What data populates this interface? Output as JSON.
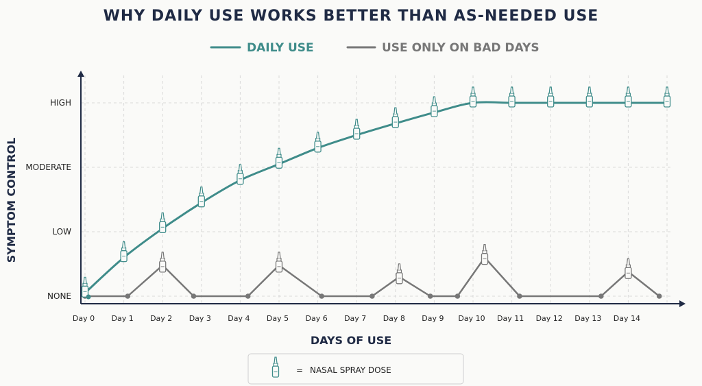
{
  "chart_data": {
    "type": "line",
    "title": "WHY DAILY USE WORKS BETTER THAN AS-NEEDED USE",
    "xlabel": "DAYS OF USE",
    "ylabel": "SYMPTOM CONTROL",
    "y_levels": [
      "NONE",
      "LOW",
      "MODERATE",
      "HIGH"
    ],
    "ylim": [
      0,
      3
    ],
    "categories": [
      "Day 0",
      "Day 1",
      "Day 2",
      "Day 3",
      "Day 4",
      "Day 5",
      "Day 6",
      "Day 7",
      "Day 8",
      "Day 9",
      "Day 10",
      "Day 11",
      "Day 12",
      "Day 13",
      "Day 14"
    ],
    "grid": true,
    "legend_position": "top-center",
    "series": [
      {
        "name": "DAILY USE",
        "color": "#3f8c8a",
        "points": [
          {
            "x": 0,
            "y": 0.05,
            "dose": true
          },
          {
            "x": 1,
            "y": 0.6,
            "dose": true
          },
          {
            "x": 2,
            "y": 1.05,
            "dose": true
          },
          {
            "x": 3,
            "y": 1.45,
            "dose": true
          },
          {
            "x": 4,
            "y": 1.8,
            "dose": true
          },
          {
            "x": 5,
            "y": 2.05,
            "dose": true
          },
          {
            "x": 6,
            "y": 2.3,
            "dose": true
          },
          {
            "x": 7,
            "y": 2.5,
            "dose": true
          },
          {
            "x": 8,
            "y": 2.68,
            "dose": true
          },
          {
            "x": 9,
            "y": 2.85,
            "dose": true
          },
          {
            "x": 10,
            "y": 3.0,
            "dose": true
          },
          {
            "x": 11,
            "y": 3.0,
            "dose": true
          },
          {
            "x": 12,
            "y": 3.0,
            "dose": true
          },
          {
            "x": 13,
            "y": 3.0,
            "dose": true
          },
          {
            "x": 14,
            "y": 3.0,
            "dose": true
          },
          {
            "x": 15,
            "y": 3.0,
            "dose": true
          }
        ]
      },
      {
        "name": "USE ONLY ON BAD DAYS",
        "color": "#777777",
        "points": [
          {
            "x": 0,
            "y": 0.0,
            "dose": false
          },
          {
            "x": 1.1,
            "y": 0.0,
            "dose": false
          },
          {
            "x": 2,
            "y": 0.48,
            "dose": true
          },
          {
            "x": 2.8,
            "y": 0.0,
            "dose": false
          },
          {
            "x": 4.2,
            "y": 0.0,
            "dose": false
          },
          {
            "x": 5,
            "y": 0.48,
            "dose": true
          },
          {
            "x": 6.1,
            "y": 0.0,
            "dose": false
          },
          {
            "x": 7.4,
            "y": 0.0,
            "dose": false
          },
          {
            "x": 8.1,
            "y": 0.3,
            "dose": true
          },
          {
            "x": 8.9,
            "y": 0.0,
            "dose": false
          },
          {
            "x": 9.6,
            "y": 0.0,
            "dose": false
          },
          {
            "x": 10.3,
            "y": 0.6,
            "dose": true
          },
          {
            "x": 11.2,
            "y": 0.0,
            "dose": false
          },
          {
            "x": 13.3,
            "y": 0.0,
            "dose": false
          },
          {
            "x": 14.0,
            "y": 0.38,
            "dose": true
          },
          {
            "x": 14.8,
            "y": 0.0,
            "dose": false
          }
        ]
      }
    ],
    "legend_note": {
      "symbol": "=",
      "label": "NASAL SPRAY DOSE"
    }
  },
  "colors": {
    "daily": "#3f8c8a",
    "as_needed": "#777777",
    "axis": "#1f2a44",
    "grid": "#d9d9d9"
  }
}
